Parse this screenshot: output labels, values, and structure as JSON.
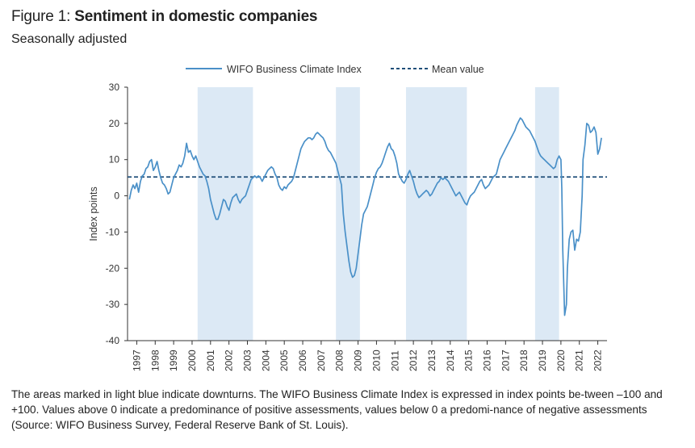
{
  "header": {
    "prefix": "Figure 1: ",
    "title": "Sentiment in domestic companies",
    "subtitle": "Seasonally adjusted"
  },
  "legend": {
    "line_label": "WIFO Business Climate Index",
    "mean_label": "Mean value"
  },
  "caption": "The areas marked in light blue indicate downturns. The WIFO Business Climate Index is expressed in index points be-tween –100 and +100. Values above 0 indicate a predominance of positive assessments, values below 0 a predomi-nance of negative assessments (Source: WIFO Business Survey, Federal Reserve Bank of St. Louis).",
  "colors": {
    "line": "#4a90c8",
    "mean": "#1f4e79",
    "shade": "#dce9f5",
    "axis": "#333333"
  },
  "chart_data": {
    "type": "line",
    "ylabel": "Index points",
    "xlabel": "",
    "ylim": [
      -40,
      30
    ],
    "yticks": [
      -40,
      -30,
      -20,
      -10,
      0,
      10,
      20,
      30
    ],
    "xlim": [
      1996.5,
      2022.5
    ],
    "xticks": [
      1997,
      1998,
      1999,
      2000,
      2001,
      2002,
      2003,
      2004,
      2005,
      2006,
      2007,
      2008,
      2009,
      2010,
      2011,
      2012,
      2013,
      2014,
      2015,
      2016,
      2017,
      2018,
      2019,
      2020,
      2021,
      2022
    ],
    "mean_value": 5.2,
    "downturns": [
      [
        2000.3,
        2003.3
      ],
      [
        2007.8,
        2009.1
      ],
      [
        2011.6,
        2014.9
      ],
      [
        2018.6,
        2019.9
      ]
    ],
    "series": [
      {
        "name": "WIFO Business Climate Index",
        "points": [
          [
            1996.6,
            -1
          ],
          [
            1996.7,
            1.5
          ],
          [
            1996.8,
            3
          ],
          [
            1996.9,
            2
          ],
          [
            1997.0,
            3.5
          ],
          [
            1997.1,
            1
          ],
          [
            1997.2,
            4
          ],
          [
            1997.3,
            5.5
          ],
          [
            1997.4,
            6
          ],
          [
            1997.5,
            7.5
          ],
          [
            1997.6,
            8
          ],
          [
            1997.7,
            9.5
          ],
          [
            1997.8,
            10
          ],
          [
            1997.9,
            7
          ],
          [
            1998.0,
            8
          ],
          [
            1998.1,
            9.5
          ],
          [
            1998.2,
            7
          ],
          [
            1998.3,
            5
          ],
          [
            1998.4,
            3.5
          ],
          [
            1998.5,
            3
          ],
          [
            1998.6,
            2
          ],
          [
            1998.7,
            0.5
          ],
          [
            1998.8,
            1
          ],
          [
            1998.9,
            3
          ],
          [
            1999.0,
            5
          ],
          [
            1999.1,
            6
          ],
          [
            1999.2,
            7
          ],
          [
            1999.3,
            8.5
          ],
          [
            1999.4,
            8
          ],
          [
            1999.5,
            9
          ],
          [
            1999.6,
            11
          ],
          [
            1999.7,
            14.5
          ],
          [
            1999.8,
            12
          ],
          [
            1999.9,
            12.5
          ],
          [
            2000.0,
            11
          ],
          [
            2000.1,
            10
          ],
          [
            2000.2,
            11
          ],
          [
            2000.3,
            9.5
          ],
          [
            2000.4,
            8
          ],
          [
            2000.5,
            7
          ],
          [
            2000.6,
            6
          ],
          [
            2000.7,
            5.5
          ],
          [
            2000.8,
            4
          ],
          [
            2000.9,
            2
          ],
          [
            2001.0,
            -1
          ],
          [
            2001.1,
            -3
          ],
          [
            2001.2,
            -5
          ],
          [
            2001.3,
            -6.5
          ],
          [
            2001.4,
            -6.5
          ],
          [
            2001.5,
            -5
          ],
          [
            2001.6,
            -3
          ],
          [
            2001.7,
            -1
          ],
          [
            2001.8,
            -1.5
          ],
          [
            2001.9,
            -3
          ],
          [
            2002.0,
            -4
          ],
          [
            2002.1,
            -2
          ],
          [
            2002.2,
            -0.5
          ],
          [
            2002.3,
            0
          ],
          [
            2002.4,
            0.5
          ],
          [
            2002.5,
            -1
          ],
          [
            2002.6,
            -2
          ],
          [
            2002.7,
            -1
          ],
          [
            2002.8,
            -0.5
          ],
          [
            2002.9,
            0
          ],
          [
            2003.0,
            1.5
          ],
          [
            2003.1,
            3
          ],
          [
            2003.2,
            4.5
          ],
          [
            2003.3,
            5
          ],
          [
            2003.4,
            5.5
          ],
          [
            2003.5,
            5
          ],
          [
            2003.6,
            5.5
          ],
          [
            2003.7,
            5
          ],
          [
            2003.8,
            4
          ],
          [
            2003.9,
            5
          ],
          [
            2004.0,
            6
          ],
          [
            2004.1,
            7
          ],
          [
            2004.2,
            7.5
          ],
          [
            2004.3,
            8
          ],
          [
            2004.4,
            7.5
          ],
          [
            2004.5,
            6
          ],
          [
            2004.6,
            5
          ],
          [
            2004.7,
            3
          ],
          [
            2004.8,
            2
          ],
          [
            2004.9,
            1.5
          ],
          [
            2005.0,
            2.5
          ],
          [
            2005.1,
            2
          ],
          [
            2005.2,
            3
          ],
          [
            2005.3,
            3.5
          ],
          [
            2005.4,
            4
          ],
          [
            2005.5,
            5
          ],
          [
            2005.6,
            7
          ],
          [
            2005.7,
            9
          ],
          [
            2005.8,
            11
          ],
          [
            2005.9,
            13
          ],
          [
            2006.0,
            14
          ],
          [
            2006.1,
            15
          ],
          [
            2006.2,
            15.5
          ],
          [
            2006.3,
            16
          ],
          [
            2006.4,
            16
          ],
          [
            2006.5,
            15.5
          ],
          [
            2006.6,
            16
          ],
          [
            2006.7,
            17
          ],
          [
            2006.8,
            17.5
          ],
          [
            2006.9,
            17
          ],
          [
            2007.0,
            16.5
          ],
          [
            2007.1,
            16
          ],
          [
            2007.2,
            15
          ],
          [
            2007.3,
            13.5
          ],
          [
            2007.4,
            12.5
          ],
          [
            2007.5,
            12
          ],
          [
            2007.6,
            11
          ],
          [
            2007.7,
            10
          ],
          [
            2007.8,
            9
          ],
          [
            2007.9,
            7
          ],
          [
            2008.0,
            5
          ],
          [
            2008.1,
            3
          ],
          [
            2008.2,
            -5
          ],
          [
            2008.3,
            -10
          ],
          [
            2008.4,
            -14
          ],
          [
            2008.5,
            -18
          ],
          [
            2008.6,
            -21
          ],
          [
            2008.7,
            -22.5
          ],
          [
            2008.8,
            -22
          ],
          [
            2008.9,
            -20
          ],
          [
            2009.0,
            -16
          ],
          [
            2009.1,
            -12
          ],
          [
            2009.2,
            -8
          ],
          [
            2009.3,
            -5
          ],
          [
            2009.4,
            -4
          ],
          [
            2009.5,
            -3
          ],
          [
            2009.6,
            -1
          ],
          [
            2009.7,
            1
          ],
          [
            2009.8,
            3
          ],
          [
            2009.9,
            5
          ],
          [
            2010.0,
            6.5
          ],
          [
            2010.1,
            7.5
          ],
          [
            2010.2,
            8
          ],
          [
            2010.3,
            9
          ],
          [
            2010.4,
            10.5
          ],
          [
            2010.5,
            12
          ],
          [
            2010.6,
            13.5
          ],
          [
            2010.7,
            14.5
          ],
          [
            2010.8,
            13
          ],
          [
            2010.9,
            12.5
          ],
          [
            2011.0,
            11
          ],
          [
            2011.1,
            9
          ],
          [
            2011.2,
            6
          ],
          [
            2011.3,
            5
          ],
          [
            2011.4,
            4
          ],
          [
            2011.5,
            3.5
          ],
          [
            2011.6,
            4.5
          ],
          [
            2011.7,
            6
          ],
          [
            2011.8,
            7
          ],
          [
            2011.9,
            5.5
          ],
          [
            2012.0,
            4
          ],
          [
            2012.1,
            2
          ],
          [
            2012.2,
            0.5
          ],
          [
            2012.3,
            -0.5
          ],
          [
            2012.4,
            0
          ],
          [
            2012.5,
            0.5
          ],
          [
            2012.6,
            1
          ],
          [
            2012.7,
            1.5
          ],
          [
            2012.8,
            1
          ],
          [
            2012.9,
            0
          ],
          [
            2013.0,
            0.5
          ],
          [
            2013.1,
            1.5
          ],
          [
            2013.2,
            2.5
          ],
          [
            2013.3,
            3.5
          ],
          [
            2013.4,
            4
          ],
          [
            2013.5,
            5
          ],
          [
            2013.6,
            4.5
          ],
          [
            2013.7,
            5
          ],
          [
            2013.8,
            4.5
          ],
          [
            2013.9,
            4
          ],
          [
            2014.0,
            3
          ],
          [
            2014.1,
            2
          ],
          [
            2014.2,
            1
          ],
          [
            2014.3,
            0
          ],
          [
            2014.4,
            0.5
          ],
          [
            2014.5,
            1
          ],
          [
            2014.6,
            0
          ],
          [
            2014.7,
            -1
          ],
          [
            2014.8,
            -2
          ],
          [
            2014.9,
            -2.5
          ],
          [
            2015.0,
            -1
          ],
          [
            2015.1,
            0
          ],
          [
            2015.2,
            0.5
          ],
          [
            2015.3,
            1
          ],
          [
            2015.4,
            2
          ],
          [
            2015.5,
            3
          ],
          [
            2015.6,
            4
          ],
          [
            2015.7,
            4.5
          ],
          [
            2015.8,
            3
          ],
          [
            2015.9,
            2
          ],
          [
            2016.0,
            2.5
          ],
          [
            2016.1,
            3
          ],
          [
            2016.2,
            4
          ],
          [
            2016.3,
            5
          ],
          [
            2016.4,
            5.5
          ],
          [
            2016.5,
            6
          ],
          [
            2016.6,
            8
          ],
          [
            2016.7,
            10
          ],
          [
            2016.8,
            11
          ],
          [
            2016.9,
            12
          ],
          [
            2017.0,
            13
          ],
          [
            2017.1,
            14
          ],
          [
            2017.2,
            15
          ],
          [
            2017.3,
            16
          ],
          [
            2017.4,
            17
          ],
          [
            2017.5,
            18
          ],
          [
            2017.6,
            19.5
          ],
          [
            2017.7,
            20.5
          ],
          [
            2017.8,
            21.5
          ],
          [
            2017.9,
            21
          ],
          [
            2018.0,
            20
          ],
          [
            2018.1,
            19
          ],
          [
            2018.2,
            18.5
          ],
          [
            2018.3,
            18
          ],
          [
            2018.4,
            17
          ],
          [
            2018.5,
            16
          ],
          [
            2018.6,
            15
          ],
          [
            2018.7,
            13.5
          ],
          [
            2018.8,
            12
          ],
          [
            2018.9,
            11
          ],
          [
            2019.0,
            10.5
          ],
          [
            2019.1,
            10
          ],
          [
            2019.2,
            9.5
          ],
          [
            2019.3,
            9
          ],
          [
            2019.4,
            8.5
          ],
          [
            2019.5,
            8
          ],
          [
            2019.6,
            7.5
          ],
          [
            2019.7,
            8
          ],
          [
            2019.8,
            10
          ],
          [
            2019.9,
            11
          ],
          [
            2020.0,
            10
          ],
          [
            2020.05,
            2
          ],
          [
            2020.1,
            -15
          ],
          [
            2020.2,
            -33
          ],
          [
            2020.3,
            -30
          ],
          [
            2020.35,
            -20
          ],
          [
            2020.45,
            -12
          ],
          [
            2020.55,
            -10
          ],
          [
            2020.65,
            -9.5
          ],
          [
            2020.75,
            -15
          ],
          [
            2020.85,
            -12
          ],
          [
            2020.95,
            -12.5
          ],
          [
            2021.05,
            -10
          ],
          [
            2021.15,
            0
          ],
          [
            2021.2,
            10
          ],
          [
            2021.3,
            14
          ],
          [
            2021.4,
            20
          ],
          [
            2021.5,
            19.5
          ],
          [
            2021.6,
            17.5
          ],
          [
            2021.7,
            18
          ],
          [
            2021.8,
            19
          ],
          [
            2021.9,
            17.5
          ],
          [
            2022.0,
            11.5
          ],
          [
            2022.1,
            13
          ],
          [
            2022.2,
            16
          ]
        ]
      }
    ]
  }
}
